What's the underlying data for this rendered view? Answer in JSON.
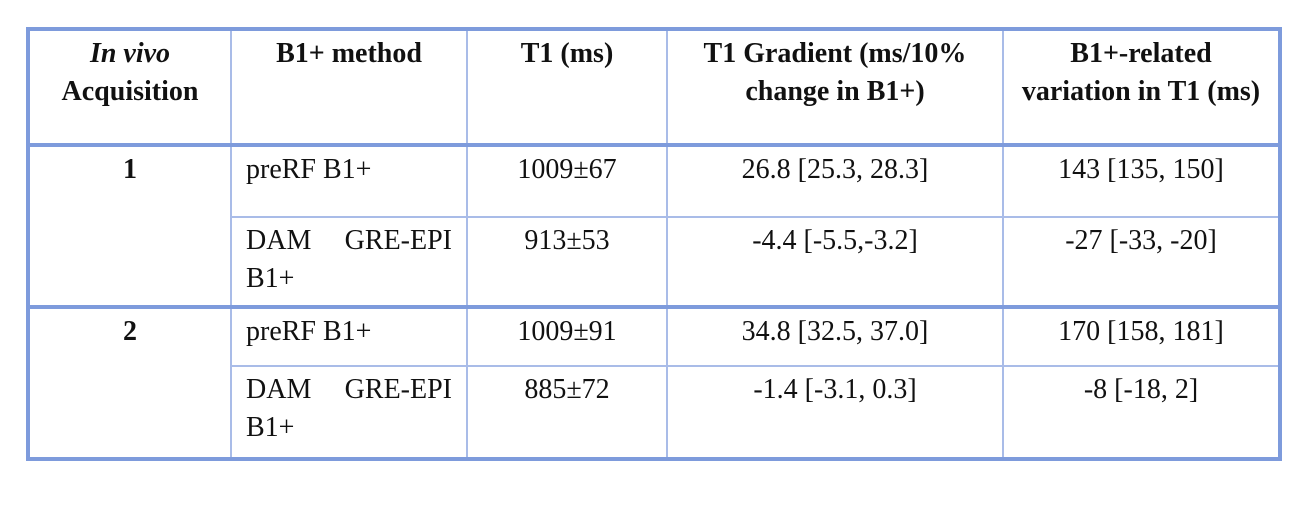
{
  "table": {
    "header": [
      {
        "italic": "In vivo",
        "text": "Acquisition"
      },
      "B1+ method",
      "T1 (ms)",
      "T1 Gradient (ms/10% change in B1+)",
      "B1+-related variation in T1 (ms)"
    ],
    "groups": [
      {
        "acquisition": "1",
        "rows": [
          [
            "preRF B1+",
            "1009±67",
            "26.8 [25.3, 28.3]",
            "143 [135, 150]"
          ],
          [
            "DAM GRE-EPI B1+",
            "913±53",
            "-4.4 [-5.5,-3.2]",
            "-27 [-33, -20]"
          ]
        ]
      },
      {
        "acquisition": "2",
        "rows": [
          [
            "preRF B1+",
            "1009±91",
            "34.8 [32.5, 37.0]",
            "170 [158, 181]"
          ],
          [
            "DAM GRE-EPI B1+",
            "885±72",
            "-1.4 [-3.1, 0.3]",
            "-8 [-18, 2]"
          ]
        ]
      }
    ]
  }
}
